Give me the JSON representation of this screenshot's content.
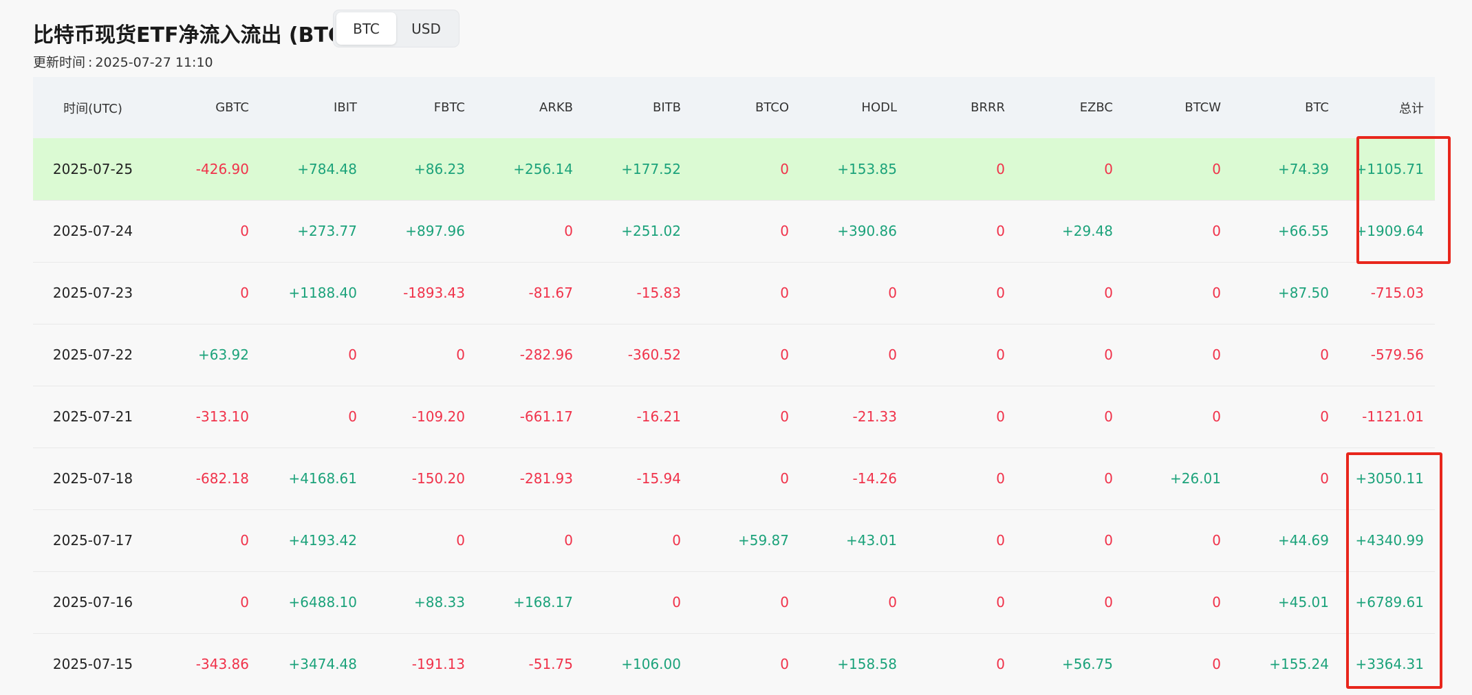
{
  "title": "比特币现货ETF净流入流出 (BTC)",
  "unit_toggle": {
    "options": [
      "BTC",
      "USD"
    ],
    "selected": "BTC"
  },
  "updated": {
    "label": "更新时间",
    "separator": ":",
    "value": "2025-07-27 11:10"
  },
  "table": {
    "columns": [
      "时间(UTC)",
      "GBTC",
      "IBIT",
      "FBTC",
      "ARKB",
      "BITB",
      "BTCO",
      "HODL",
      "BRRR",
      "EZBC",
      "BTCW",
      "BTC",
      "总计"
    ],
    "rows": [
      {
        "highlight": true,
        "cells": [
          "2025-07-25",
          "-426.90",
          "+784.48",
          "+86.23",
          "+256.14",
          "+177.52",
          "0",
          "+153.85",
          "0",
          "0",
          "0",
          "+74.39",
          "+1105.71"
        ]
      },
      {
        "highlight": false,
        "cells": [
          "2025-07-24",
          "0",
          "+273.77",
          "+897.96",
          "0",
          "+251.02",
          "0",
          "+390.86",
          "0",
          "+29.48",
          "0",
          "+66.55",
          "+1909.64"
        ]
      },
      {
        "highlight": false,
        "cells": [
          "2025-07-23",
          "0",
          "+1188.40",
          "-1893.43",
          "-81.67",
          "-15.83",
          "0",
          "0",
          "0",
          "0",
          "0",
          "+87.50",
          "-715.03"
        ]
      },
      {
        "highlight": false,
        "cells": [
          "2025-07-22",
          "+63.92",
          "0",
          "0",
          "-282.96",
          "-360.52",
          "0",
          "0",
          "0",
          "0",
          "0",
          "0",
          "-579.56"
        ]
      },
      {
        "highlight": false,
        "cells": [
          "2025-07-21",
          "-313.10",
          "0",
          "-109.20",
          "-661.17",
          "-16.21",
          "0",
          "-21.33",
          "0",
          "0",
          "0",
          "0",
          "-1121.01"
        ]
      },
      {
        "highlight": false,
        "cells": [
          "2025-07-18",
          "-682.18",
          "+4168.61",
          "-150.20",
          "-281.93",
          "-15.94",
          "0",
          "-14.26",
          "0",
          "0",
          "+26.01",
          "0",
          "+3050.11"
        ]
      },
      {
        "highlight": false,
        "cells": [
          "2025-07-17",
          "0",
          "+4193.42",
          "0",
          "0",
          "0",
          "+59.87",
          "+43.01",
          "0",
          "0",
          "0",
          "+44.69",
          "+4340.99"
        ]
      },
      {
        "highlight": false,
        "cells": [
          "2025-07-16",
          "0",
          "+6488.10",
          "+88.33",
          "+168.17",
          "0",
          "0",
          "0",
          "0",
          "0",
          "0",
          "+45.01",
          "+6789.61"
        ]
      },
      {
        "highlight": false,
        "cells": [
          "2025-07-15",
          "-343.86",
          "+3474.48",
          "-191.13",
          "-51.75",
          "+106.00",
          "0",
          "+158.58",
          "0",
          "+56.75",
          "0",
          "+155.24",
          "+3364.31"
        ]
      }
    ]
  },
  "colors": {
    "positive": "#1ba27a",
    "negative": "#f0324a",
    "highlight_row": "#dbfad3",
    "annotation_box": "#e8261c"
  }
}
